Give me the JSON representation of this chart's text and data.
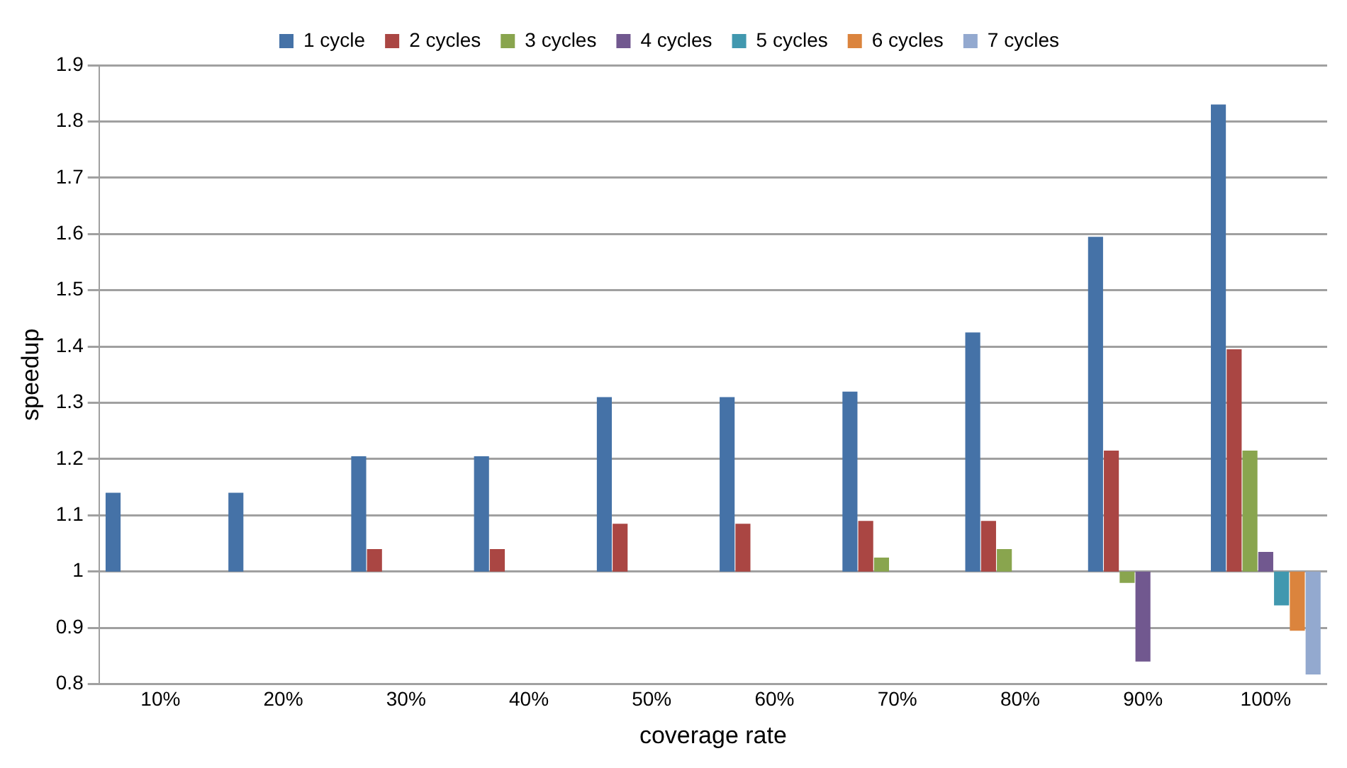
{
  "chart_data": {
    "type": "bar",
    "xlabel": "coverage rate",
    "ylabel": "speedup",
    "categories": [
      "10%",
      "20%",
      "30%",
      "40%",
      "50%",
      "60%",
      "70%",
      "80%",
      "90%",
      "100%"
    ],
    "series": [
      {
        "name": "1 cycle",
        "color": "#4572a7",
        "base": [
          1,
          1,
          1,
          1,
          1,
          1,
          1,
          1,
          1,
          1
        ],
        "values": [
          0.14,
          0.14,
          0.205,
          0.205,
          0.31,
          0.31,
          0.32,
          0.425,
          0.595,
          0.83
        ]
      },
      {
        "name": "2 cycles",
        "color": "#aa4643",
        "base": [
          null,
          null,
          1,
          1,
          1,
          1,
          1,
          1,
          1,
          1
        ],
        "values": [
          null,
          null,
          0.04,
          0.04,
          0.085,
          0.085,
          0.09,
          0.09,
          0.215,
          0.395
        ]
      },
      {
        "name": "3 cycles",
        "color": "#89a54e",
        "base": [
          null,
          null,
          null,
          null,
          null,
          null,
          1,
          1,
          1,
          1
        ],
        "values": [
          null,
          null,
          null,
          null,
          null,
          null,
          0.025,
          0.04,
          -0.02,
          0.215
        ]
      },
      {
        "name": "4 cycles",
        "color": "#71588f",
        "base": [
          null,
          null,
          null,
          null,
          null,
          null,
          null,
          null,
          1,
          1
        ],
        "values": [
          null,
          null,
          null,
          null,
          null,
          null,
          null,
          null,
          -0.16,
          0.035
        ]
      },
      {
        "name": "5 cycles",
        "color": "#4198af",
        "base": [
          null,
          null,
          null,
          null,
          null,
          null,
          null,
          null,
          null,
          1
        ],
        "values": [
          null,
          null,
          null,
          null,
          null,
          null,
          null,
          null,
          null,
          -0.06
        ]
      },
      {
        "name": "6 cycles",
        "color": "#db843d",
        "base": [
          null,
          null,
          null,
          null,
          null,
          null,
          null,
          null,
          null,
          1
        ],
        "values": [
          null,
          null,
          null,
          null,
          null,
          null,
          null,
          null,
          null,
          -0.105
        ]
      },
      {
        "name": "7 cycles",
        "color": "#93a9cf",
        "base": [
          null,
          null,
          null,
          null,
          null,
          null,
          null,
          null,
          null,
          1
        ],
        "values": [
          null,
          null,
          null,
          null,
          null,
          null,
          null,
          null,
          null,
          -0.183
        ]
      }
    ],
    "ylim": [
      0.8,
      1.9
    ],
    "yticks": [
      0.8,
      0.9,
      1,
      1.1,
      1.2,
      1.3,
      1.4,
      1.5,
      1.6,
      1.7,
      1.8,
      1.9
    ],
    "grid": "y",
    "legend": "top"
  }
}
